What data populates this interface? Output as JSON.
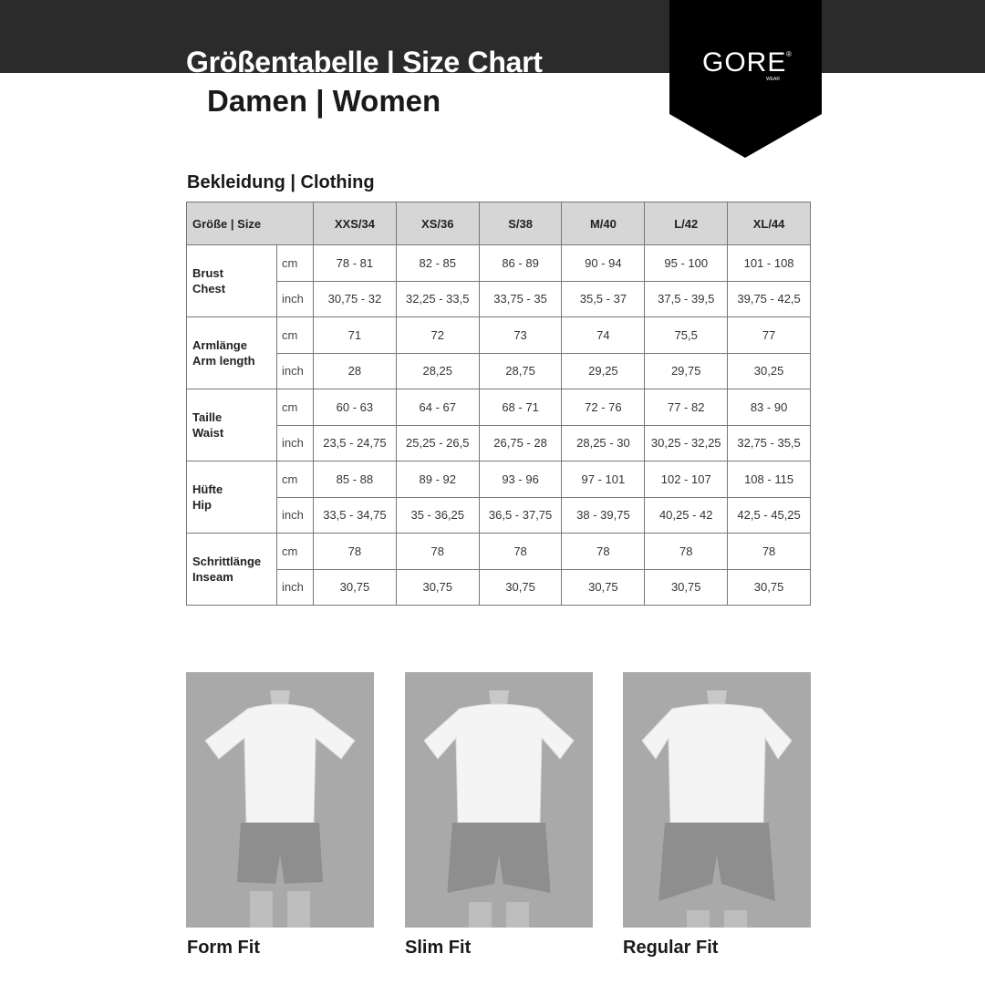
{
  "header": {
    "title": "Größentabelle | Size Chart",
    "subtitle": "Damen | Women",
    "logo_text": "GORE",
    "logo_subtext": "WEAR"
  },
  "section_title": "Bekleidung | Clothing",
  "table": {
    "header_label": "Größe | Size",
    "sizes": [
      "XXS/34",
      "XS/36",
      "S/38",
      "M/40",
      "L/42",
      "XL/44"
    ],
    "rows": [
      {
        "label_de": "Brust",
        "label_en": "Chest",
        "cm": [
          "78 - 81",
          "82 - 85",
          "86 - 89",
          "90 - 94",
          "95 - 100",
          "101 - 108"
        ],
        "inch": [
          "30,75 - 32",
          "32,25 - 33,5",
          "33,75 - 35",
          "35,5 - 37",
          "37,5 - 39,5",
          "39,75 - 42,5"
        ]
      },
      {
        "label_de": "Armlänge",
        "label_en": "Arm length",
        "cm": [
          "71",
          "72",
          "73",
          "74",
          "75,5",
          "77"
        ],
        "inch": [
          "28",
          "28,25",
          "28,75",
          "29,25",
          "29,75",
          "30,25"
        ]
      },
      {
        "label_de": "Taille",
        "label_en": "Waist",
        "cm": [
          "60 - 63",
          "64 - 67",
          "68 - 71",
          "72 - 76",
          "77 - 82",
          "83 - 90"
        ],
        "inch": [
          "23,5 - 24,75",
          "25,25 - 26,5",
          "26,75 - 28",
          "28,25 - 30",
          "30,25 - 32,25",
          "32,75 - 35,5"
        ]
      },
      {
        "label_de": "Hüfte",
        "label_en": "Hip",
        "cm": [
          "85 - 88",
          "89 - 92",
          "93 - 96",
          "97 - 101",
          "102 - 107",
          "108 - 115"
        ],
        "inch": [
          "33,5 - 34,75",
          "35 - 36,25",
          "36,5 - 37,75",
          "38 - 39,75",
          "40,25 - 42",
          "42,5 - 45,25"
        ]
      },
      {
        "label_de": "Schrittlänge",
        "label_en": "Inseam",
        "cm": [
          "78",
          "78",
          "78",
          "78",
          "78",
          "78"
        ],
        "inch": [
          "30,75",
          "30,75",
          "30,75",
          "30,75",
          "30,75",
          "30,75"
        ]
      }
    ],
    "unit_cm": "cm",
    "unit_inch": "inch"
  },
  "fits": [
    {
      "label": "Form Fit"
    },
    {
      "label": "Slim Fit"
    },
    {
      "label": "Regular Fit"
    }
  ],
  "colors": {
    "band": "#2b2b2b",
    "logo_bg": "#000000",
    "table_header": "#d6d6d6",
    "photo_bg": "#a9a9a9"
  }
}
